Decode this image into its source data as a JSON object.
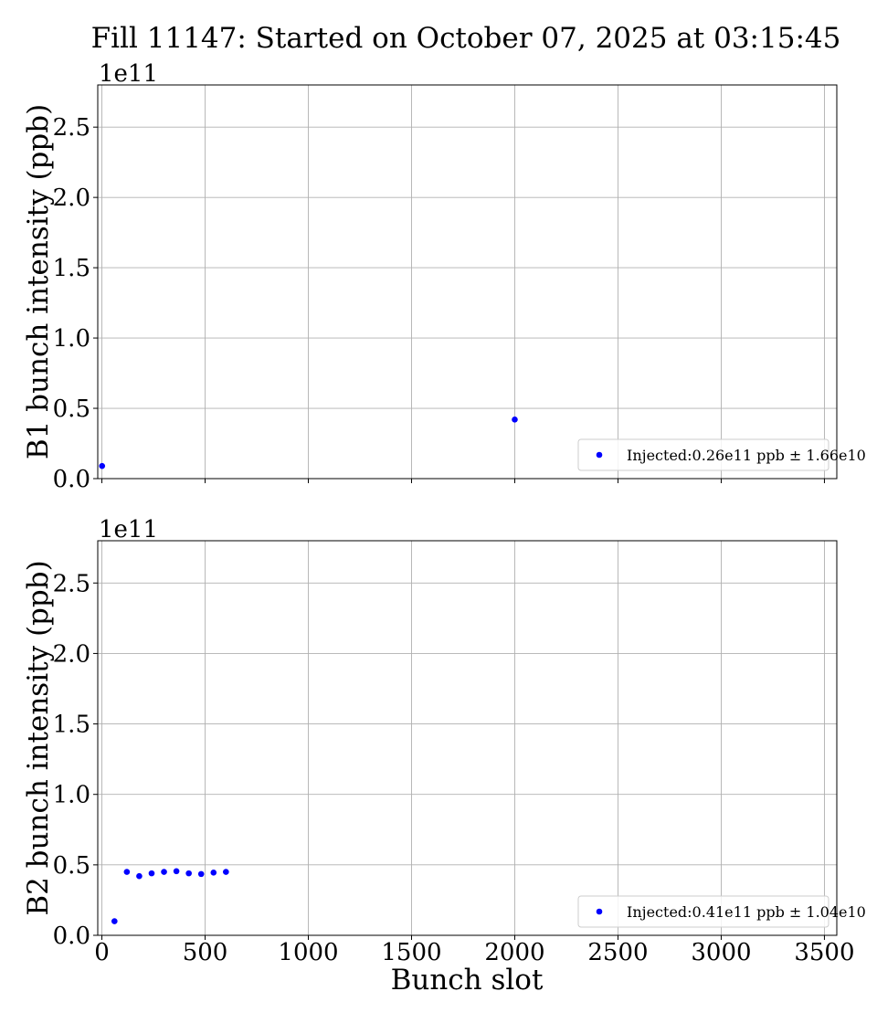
{
  "chart_data": {
    "title": "Fill 11147: Started on October 07, 2025 at 03:15:45",
    "xlabel": "Bunch slot",
    "xlim": [
      -20,
      3560
    ],
    "xticks": [
      0,
      500,
      1000,
      1500,
      2000,
      2500,
      3000,
      3500
    ],
    "xtick_labels": [
      "0",
      "500",
      "1000",
      "1500",
      "2000",
      "2500",
      "3000",
      "3500"
    ],
    "grid": true,
    "panels": [
      {
        "type": "scatter",
        "ylabel": "B1 bunch intensity (ppb)",
        "y_offset_label": "1e11",
        "ylim": [
          0,
          2.8
        ],
        "yticks": [
          0.0,
          0.5,
          1.0,
          1.5,
          2.0,
          2.5
        ],
        "ytick_labels": [
          "0.0",
          "0.5",
          "1.0",
          "1.5",
          "2.0",
          "2.5"
        ],
        "legend_position": "lower right",
        "series": [
          {
            "name": "Injected:0.26e11 ppb ± 1.66e10",
            "color": "#0000ff",
            "x": [
              1,
              2000
            ],
            "y": [
              0.09,
              0.42
            ]
          }
        ]
      },
      {
        "type": "scatter",
        "ylabel": "B2 bunch intensity (ppb)",
        "y_offset_label": "1e11",
        "ylim": [
          0,
          2.8
        ],
        "yticks": [
          0.0,
          0.5,
          1.0,
          1.5,
          2.0,
          2.5
        ],
        "ytick_labels": [
          "0.0",
          "0.5",
          "1.0",
          "1.5",
          "2.0",
          "2.5"
        ],
        "legend_position": "lower right",
        "series": [
          {
            "name": "Injected:0.41e11 ppb ± 1.04e10",
            "color": "#0000ff",
            "x": [
              61,
              121,
              181,
              241,
              301,
              361,
              421,
              481,
              541,
              601
            ],
            "y": [
              0.1,
              0.45,
              0.42,
              0.44,
              0.45,
              0.455,
              0.44,
              0.435,
              0.445,
              0.45
            ]
          }
        ]
      }
    ]
  }
}
